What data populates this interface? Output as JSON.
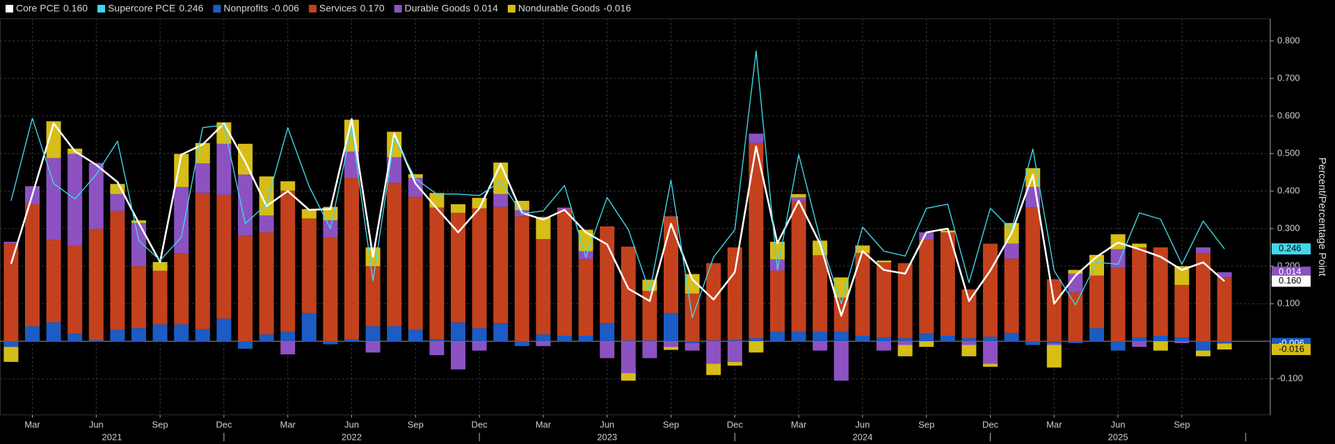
{
  "chart_data": {
    "type": "bar",
    "y_label": "Percent/Percentage Point",
    "categories": [
      null,
      "Mar",
      null,
      null,
      "Jun",
      null,
      null,
      "Sep",
      null,
      null,
      "Dec",
      null,
      null,
      "Mar",
      null,
      null,
      "Jun",
      null,
      null,
      "Sep",
      null,
      null,
      "Dec",
      null,
      null,
      "Mar",
      null,
      null,
      "Jun",
      null,
      null,
      "Sep",
      null,
      null,
      "Dec",
      null,
      null,
      "Mar",
      null,
      null,
      "Jun",
      null,
      null,
      "Sep",
      null,
      null,
      "Dec",
      null,
      null,
      "Mar",
      null,
      null,
      "Jun",
      null,
      null,
      "Sep",
      null,
      null
    ],
    "year_labels": [
      "2021",
      "2022",
      "2023",
      "2024",
      "2025"
    ],
    "ylim": [
      -0.196,
      0.859
    ],
    "yticks": [
      {
        "value": -0.1,
        "label": "-0.100"
      },
      {
        "value": 0.1,
        "label": "0.100"
      },
      {
        "value": 0.2,
        "label": "0.200"
      },
      {
        "value": 0.3,
        "label": "0.300"
      },
      {
        "value": 0.4,
        "label": "0.400"
      },
      {
        "value": 0.5,
        "label": "0.500"
      },
      {
        "value": 0.6,
        "label": "0.600"
      },
      {
        "value": 0.7,
        "label": "0.700"
      },
      {
        "value": 0.8,
        "label": "0.800"
      }
    ],
    "grid": true,
    "legend": "top",
    "series": [
      {
        "name": "Core PCE",
        "type": "line",
        "color": "#ffffff",
        "values": [
          0.206,
          0.39,
          0.58,
          0.506,
          0.47,
          0.424,
          0.315,
          0.211,
          0.497,
          0.524,
          0.58,
          0.478,
          0.36,
          0.4,
          0.35,
          0.352,
          0.592,
          0.225,
          0.553,
          0.42,
          0.354,
          0.29,
          0.354,
          0.472,
          0.342,
          0.324,
          0.35,
          0.29,
          0.258,
          0.14,
          0.107,
          0.313,
          0.165,
          0.111,
          0.184,
          0.519,
          0.261,
          0.374,
          0.26,
          0.068,
          0.24,
          0.19,
          0.18,
          0.29,
          0.3,
          0.107,
          0.188,
          0.288,
          0.444,
          0.1,
          0.175,
          0.225,
          0.263,
          0.245,
          0.225,
          0.19,
          0.21,
          0.16
        ],
        "value_labels": [
          null,
          null,
          null,
          null,
          null,
          null,
          null,
          null,
          null,
          null,
          null,
          null,
          null,
          null,
          null,
          null,
          null,
          null,
          null,
          null,
          null,
          null,
          null,
          null,
          null,
          null,
          null,
          null,
          null,
          null,
          null,
          null,
          null,
          null,
          null,
          null,
          null,
          null,
          null,
          null,
          null,
          null,
          null,
          null,
          null,
          null,
          null,
          null,
          null,
          null,
          null,
          null,
          null,
          null,
          null,
          null,
          null,
          "0.160"
        ]
      },
      {
        "name": "Supercore PCE",
        "type": "line",
        "color": "#3fd8ea",
        "values": [
          0.374,
          0.594,
          0.42,
          0.379,
          0.444,
          0.533,
          0.268,
          0.215,
          0.277,
          0.569,
          0.576,
          0.313,
          0.365,
          0.569,
          0.413,
          0.3,
          0.569,
          0.161,
          0.542,
          0.433,
          0.392,
          0.392,
          0.388,
          0.426,
          0.34,
          0.347,
          0.415,
          0.224,
          0.383,
          0.297,
          0.132,
          0.429,
          0.063,
          0.224,
          0.297,
          0.773,
          0.19,
          0.497,
          0.274,
          0.1,
          0.304,
          0.24,
          0.227,
          0.354,
          0.365,
          0.156,
          0.354,
          0.297,
          0.512,
          0.188,
          0.097,
          0.21,
          0.205,
          0.342,
          0.325,
          0.205,
          0.32,
          0.246
        ],
        "value_labels": [
          null,
          null,
          null,
          null,
          null,
          null,
          null,
          null,
          null,
          null,
          null,
          null,
          null,
          null,
          null,
          null,
          null,
          null,
          null,
          null,
          null,
          null,
          null,
          null,
          null,
          null,
          null,
          null,
          null,
          null,
          null,
          null,
          null,
          null,
          null,
          null,
          null,
          null,
          null,
          null,
          null,
          null,
          null,
          null,
          null,
          null,
          null,
          null,
          null,
          null,
          null,
          null,
          null,
          null,
          null,
          null,
          null,
          "0.246"
        ]
      },
      {
        "name": "Nonprofits",
        "type": "bar",
        "color": "#1c5cc4",
        "values": [
          -0.015,
          0.04,
          0.05,
          0.02,
          0.003,
          0.03,
          0.035,
          0.045,
          0.045,
          0.032,
          0.06,
          -0.02,
          0.018,
          0.025,
          0.075,
          -0.008,
          0.005,
          0.04,
          0.04,
          0.03,
          0.005,
          0.05,
          0.035,
          0.048,
          -0.013,
          0.018,
          0.015,
          0.015,
          0.048,
          0.002,
          0.002,
          0.075,
          -0.005,
          0.002,
          0.003,
          0.008,
          0.025,
          0.025,
          0.025,
          0.025,
          0.015,
          0.01,
          0.008,
          0.02,
          0.015,
          0.008,
          0.012,
          0.022,
          -0.01,
          -0.005,
          -0.005,
          0.035,
          -0.025,
          0.01,
          0.015,
          0.01,
          -0.025,
          -0.006
        ],
        "value_labels": [
          null,
          null,
          null,
          null,
          null,
          null,
          null,
          null,
          null,
          null,
          null,
          null,
          null,
          null,
          null,
          null,
          null,
          null,
          null,
          null,
          null,
          null,
          null,
          null,
          null,
          null,
          null,
          null,
          null,
          null,
          null,
          null,
          null,
          null,
          null,
          null,
          null,
          null,
          null,
          null,
          null,
          null,
          null,
          null,
          null,
          null,
          null,
          null,
          null,
          null,
          null,
          null,
          null,
          null,
          null,
          null,
          null,
          "-0.006"
        ]
      },
      {
        "name": "Services",
        "type": "bar",
        "color": "#c4411d",
        "values": [
          0.26,
          0.325,
          0.22,
          0.234,
          0.296,
          0.317,
          0.165,
          0.143,
          0.189,
          0.363,
          0.33,
          0.281,
          0.272,
          0.376,
          0.252,
          0.277,
          0.43,
          0.16,
          0.382,
          0.355,
          0.351,
          0.292,
          0.319,
          0.31,
          0.333,
          0.254,
          0.336,
          0.203,
          0.258,
          0.25,
          0.132,
          0.258,
          0.127,
          0.206,
          0.247,
          0.52,
          0.163,
          0.349,
          0.204,
          0.091,
          0.22,
          0.2,
          0.2,
          0.25,
          0.275,
          0.13,
          0.248,
          0.198,
          0.356,
          0.165,
          0.13,
          0.14,
          0.195,
          0.24,
          0.235,
          0.14,
          0.235,
          0.17
        ],
        "value_labels": [
          null,
          null,
          null,
          null,
          null,
          null,
          null,
          null,
          null,
          null,
          null,
          null,
          null,
          null,
          null,
          null,
          null,
          null,
          null,
          null,
          null,
          null,
          null,
          null,
          null,
          null,
          null,
          null,
          null,
          null,
          null,
          null,
          null,
          null,
          null,
          null,
          null,
          null,
          null,
          null,
          null,
          null,
          null,
          null,
          null,
          null,
          null,
          null,
          null,
          null,
          null,
          null,
          null,
          null,
          null,
          null,
          null,
          "0.170"
        ]
      },
      {
        "name": "Durable Goods",
        "type": "bar",
        "color": "#8c52c2",
        "values": [
          0.005,
          0.048,
          0.218,
          0.245,
          0.176,
          0.045,
          0.115,
          0,
          0.177,
          0.079,
          0.136,
          0.163,
          0.045,
          -0.035,
          0,
          0.045,
          0.07,
          -0.03,
          0.068,
          0.05,
          -0.037,
          -0.075,
          -0.025,
          0.034,
          0.016,
          -0.013,
          0.005,
          0.022,
          -0.045,
          -0.085,
          -0.045,
          -0.015,
          -0.02,
          -0.06,
          -0.055,
          0.025,
          0.03,
          0.009,
          -0.025,
          -0.105,
          0,
          -0.025,
          -0.01,
          0.02,
          0,
          -0.01,
          -0.06,
          0.04,
          0.055,
          -0.005,
          0.05,
          0,
          0.05,
          -0.015,
          0,
          -0.005,
          0.015,
          0.014
        ],
        "value_labels": [
          null,
          null,
          null,
          null,
          null,
          null,
          null,
          null,
          null,
          null,
          null,
          null,
          null,
          null,
          null,
          null,
          null,
          null,
          null,
          null,
          null,
          null,
          null,
          null,
          null,
          null,
          null,
          null,
          null,
          null,
          null,
          null,
          null,
          null,
          null,
          null,
          null,
          null,
          null,
          null,
          null,
          null,
          null,
          null,
          null,
          null,
          null,
          null,
          null,
          null,
          null,
          null,
          null,
          null,
          null,
          null,
          null,
          "0.014"
        ]
      },
      {
        "name": "Nondurable Goods",
        "type": "bar",
        "color": "#d6bd17",
        "values": [
          -0.04,
          0,
          0.098,
          0.014,
          0,
          0.027,
          0.007,
          0.023,
          0.088,
          0.054,
          0.057,
          0.082,
          0.104,
          0.025,
          0.025,
          0.036,
          0.085,
          0.05,
          0.068,
          0.01,
          0.039,
          0.023,
          0.028,
          0.084,
          0.025,
          0.059,
          0,
          0.057,
          0,
          -0.02,
          0.03,
          -0.008,
          0.052,
          -0.03,
          -0.01,
          -0.03,
          0.047,
          0.009,
          0.039,
          0.054,
          0.02,
          0.005,
          -0.03,
          -0.015,
          0.005,
          -0.03,
          -0.008,
          0.055,
          0.05,
          -0.06,
          0.01,
          0.055,
          0.04,
          0.01,
          -0.025,
          0.05,
          -0.015,
          -0.016
        ],
        "value_labels": [
          null,
          null,
          null,
          null,
          null,
          null,
          null,
          null,
          null,
          null,
          null,
          null,
          null,
          null,
          null,
          null,
          null,
          null,
          null,
          null,
          null,
          null,
          null,
          null,
          null,
          null,
          null,
          null,
          null,
          null,
          null,
          null,
          null,
          null,
          null,
          null,
          null,
          null,
          null,
          null,
          null,
          null,
          null,
          null,
          null,
          null,
          null,
          null,
          null,
          null,
          null,
          null,
          null,
          null,
          null,
          null,
          null,
          "-0.016"
        ]
      }
    ]
  }
}
